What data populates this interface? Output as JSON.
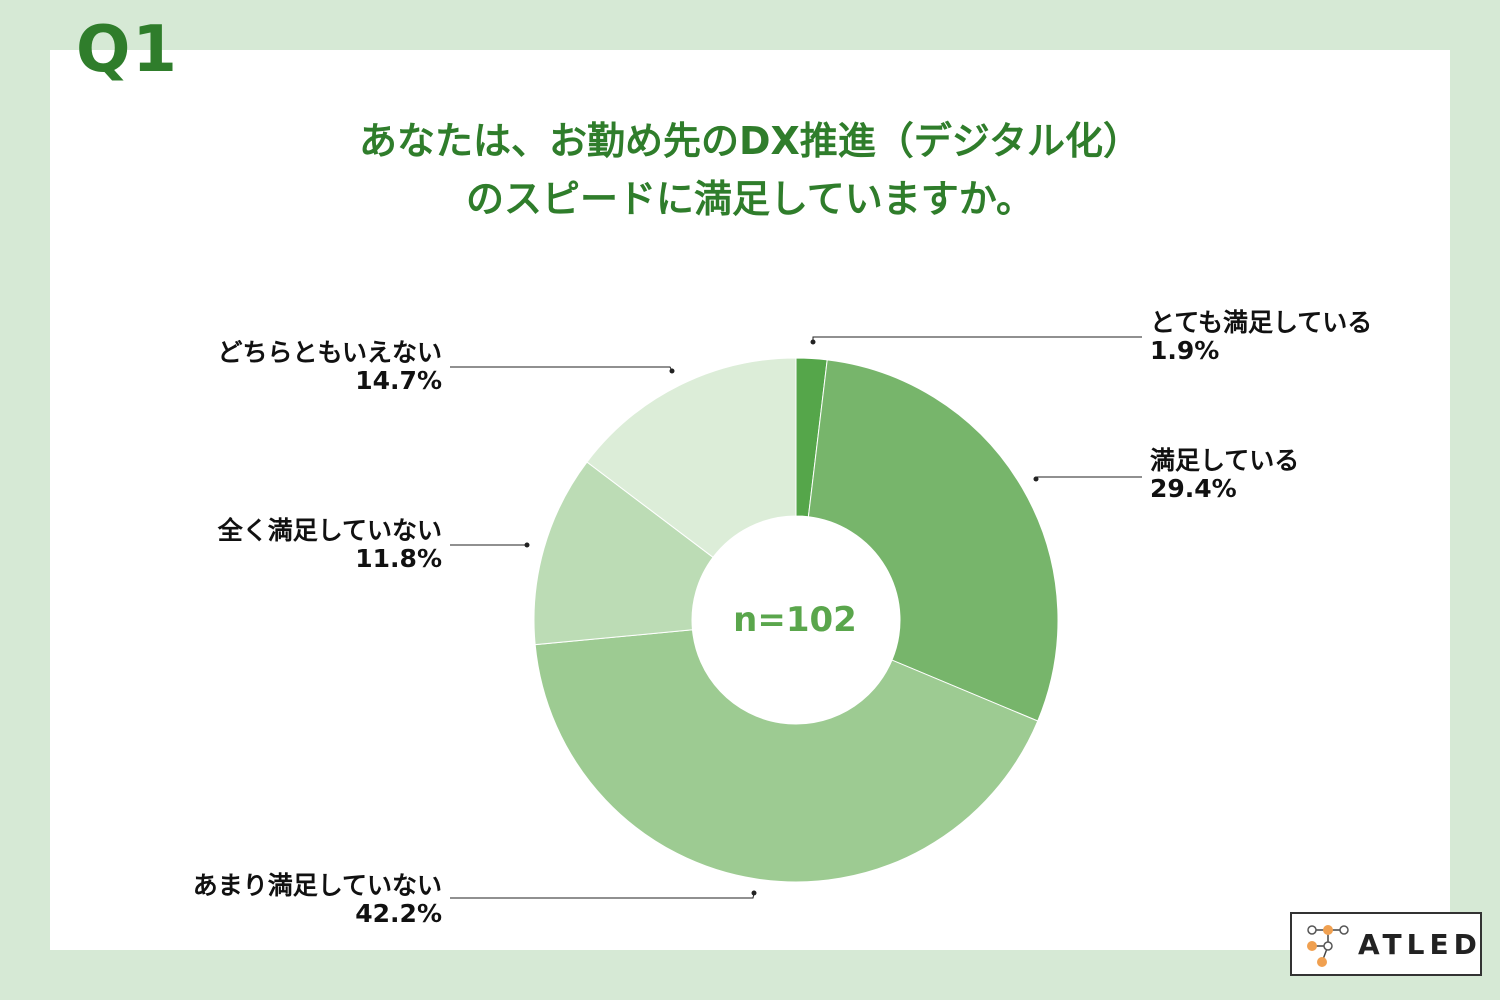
{
  "question_label": "Q1",
  "title_lines": [
    "あなたは、お勤め先のDX推進（デジタル化）",
    "のスピードに満足していますか。"
  ],
  "center_label": "n=102",
  "brand": {
    "name": "ATLED"
  },
  "colors": {
    "background": "#d6e9d5",
    "accent": "#2f7d2b",
    "center_text": "#5aa64c"
  },
  "chart_data": {
    "type": "pie",
    "donut": true,
    "slices": [
      {
        "label": "とても満足している",
        "value": 1.9,
        "value_label": "1.9%",
        "color": "#55a64a"
      },
      {
        "label": "満足している",
        "value": 29.4,
        "value_label": "29.4%",
        "color": "#77b56b"
      },
      {
        "label": "あまり満足していない",
        "value": 42.2,
        "value_label": "42.2%",
        "color": "#9dcb92"
      },
      {
        "label": "全く満足していない",
        "value": 11.8,
        "value_label": "11.8%",
        "color": "#bcdcb5"
      },
      {
        "label": "どちらともいえない",
        "value": 14.7,
        "value_label": "14.7%",
        "color": "#dcedd8"
      }
    ]
  }
}
